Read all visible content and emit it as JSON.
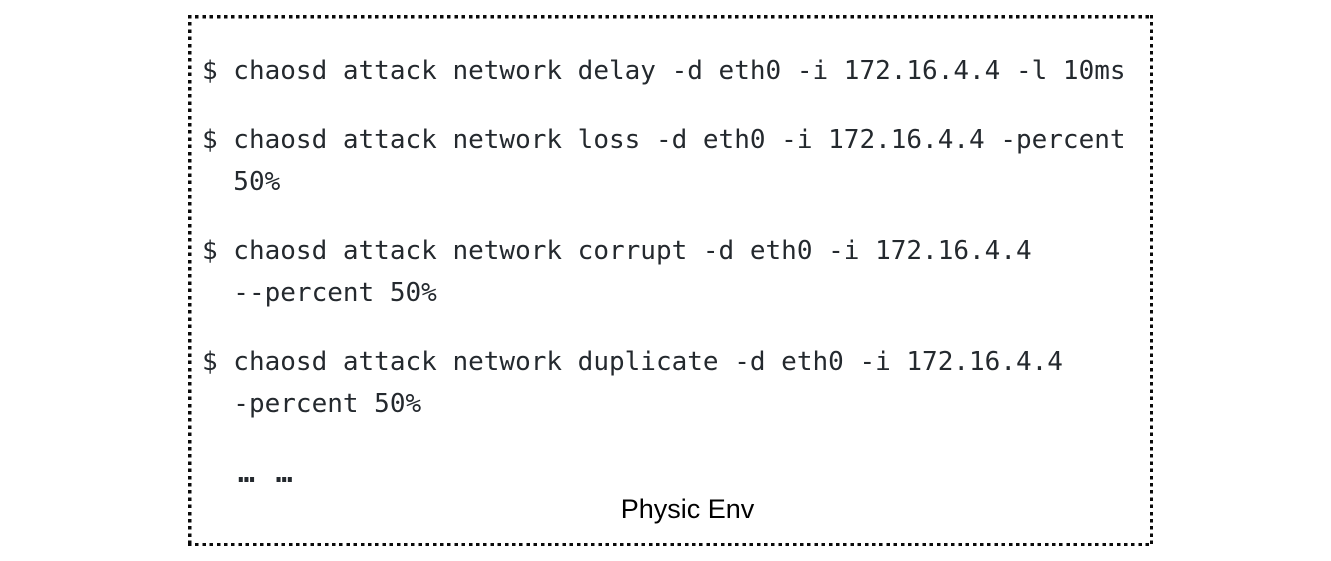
{
  "figure": {
    "caption": "Physic Env",
    "ellipsis": "… …",
    "commands": [
      {
        "lines": [
          "$ chaosd attack network delay -d eth0 -i 172.16.4.4 -l 10ms"
        ]
      },
      {
        "lines": [
          "$ chaosd attack network loss -d eth0 -i 172.16.4.4 -percent",
          "50%"
        ]
      },
      {
        "lines": [
          "$ chaosd attack network corrupt -d eth0 -i 172.16.4.4",
          "--percent 50%"
        ]
      },
      {
        "lines": [
          "$ chaosd attack network duplicate -d eth0 -i 172.16.4.4",
          "-percent 50%"
        ]
      }
    ],
    "colors": {
      "text": "#24292e",
      "border": "#0a0a0a",
      "caption": "#000000",
      "background": "#ffffff"
    }
  }
}
